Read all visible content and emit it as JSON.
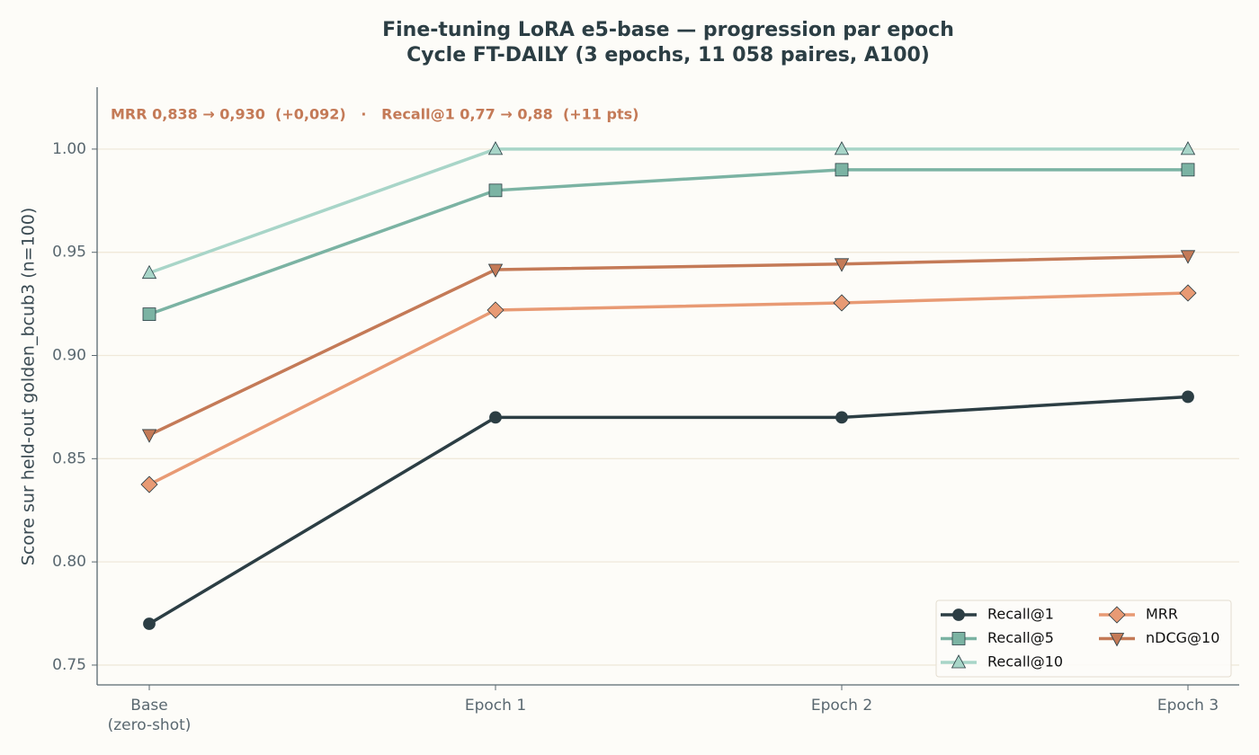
{
  "chart_data": {
    "type": "line",
    "title": "Fine-tuning LoRA e5-base — progression par epoch",
    "subtitle": "Cycle FT-DAILY (3 epochs, 11 058 paires, A100)",
    "annotation": "MRR 0,838 → 0,930  (+0,092)   ·   Recall@1 0,77 → 0,88  (+11 pts)",
    "y_label": "Score sur held-out golden_bcub3 (n=100)",
    "categories": [
      "Base\n(zero-shot)",
      "Epoch 1",
      "Epoch 2",
      "Epoch 3"
    ],
    "series": [
      {
        "name": "Recall@1",
        "color": "#2c3e44",
        "marker": "circle",
        "values": [
          0.77,
          0.87,
          0.87,
          0.88
        ]
      },
      {
        "name": "Recall@5",
        "color": "#7bb3a3",
        "marker": "square",
        "values": [
          0.92,
          0.98,
          0.99,
          0.99
        ]
      },
      {
        "name": "Recall@10",
        "color": "#a8d5c8",
        "marker": "triangle-up",
        "values": [
          0.94,
          1.0,
          1.0,
          1.0
        ]
      },
      {
        "name": "MRR",
        "color": "#e89a74",
        "marker": "diamond",
        "values": [
          0.8375,
          0.922,
          0.9255,
          0.9303
        ]
      },
      {
        "name": "nDCG@10",
        "color": "#c47a57",
        "marker": "triangle-down",
        "values": [
          0.8615,
          0.9416,
          0.9443,
          0.9482
        ]
      }
    ],
    "ylim": [
      0.7404,
      1.03
    ],
    "yticks": [
      {
        "value": 0.75,
        "label": "0.75"
      },
      {
        "value": 0.8,
        "label": "0.80"
      },
      {
        "value": 0.85,
        "label": "0.85"
      },
      {
        "value": 0.9,
        "label": "0.90"
      },
      {
        "value": 0.95,
        "label": "0.95"
      },
      {
        "value": 1.0,
        "label": "1.00"
      }
    ],
    "grid": true,
    "legend": "lower right"
  }
}
